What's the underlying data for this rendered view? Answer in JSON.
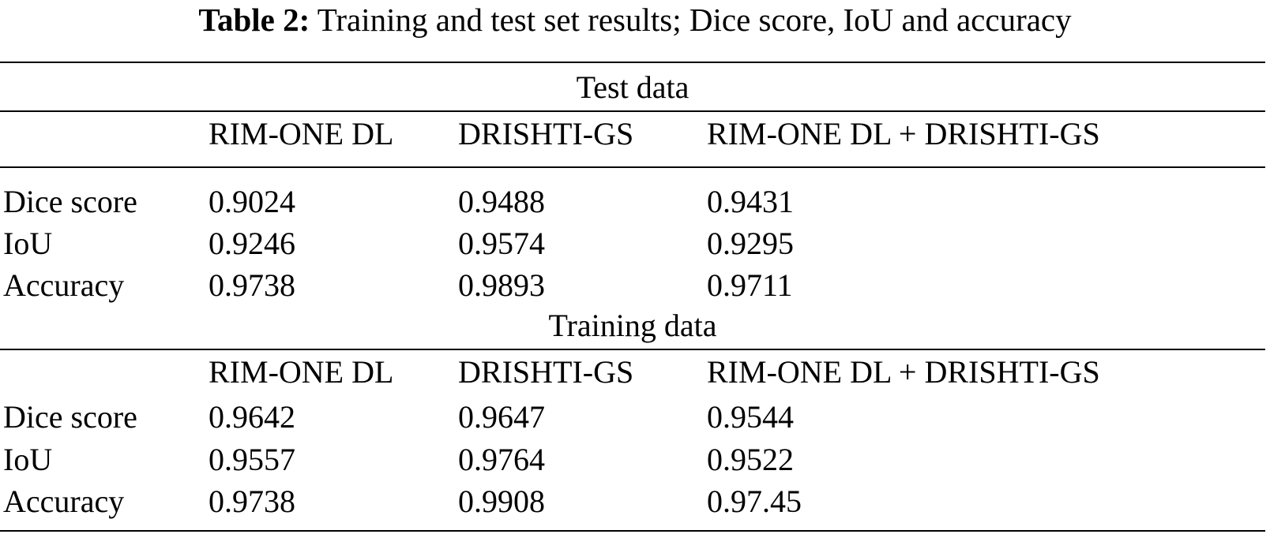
{
  "caption": {
    "label": "Table 2:",
    "text": "Training and test set results; Dice score, IoU and accuracy"
  },
  "sections": [
    {
      "title": "Test data",
      "columns": [
        "RIM-ONE DL",
        "DRISHTI-GS",
        "RIM-ONE DL + DRISHTI-GS"
      ],
      "rows": [
        {
          "metric": "Dice score",
          "values": [
            "0.9024",
            "0.9488",
            "0.9431"
          ]
        },
        {
          "metric": "IoU",
          "values": [
            "0.9246",
            "0.9574",
            "0.9295"
          ]
        },
        {
          "metric": "Accuracy",
          "values": [
            "0.9738",
            "0.9893",
            "0.9711"
          ]
        }
      ]
    },
    {
      "title": "Training data",
      "columns": [
        "RIM-ONE DL",
        "DRISHTI-GS",
        "RIM-ONE DL + DRISHTI-GS"
      ],
      "rows": [
        {
          "metric": "Dice score",
          "values": [
            "0.9642",
            "0.9647",
            "0.9544"
          ]
        },
        {
          "metric": "IoU",
          "values": [
            "0.9557",
            "0.9764",
            "0.9522"
          ]
        },
        {
          "metric": "Accuracy",
          "values": [
            "0.9738",
            "0.9908",
            "0.97.45"
          ]
        }
      ]
    }
  ]
}
